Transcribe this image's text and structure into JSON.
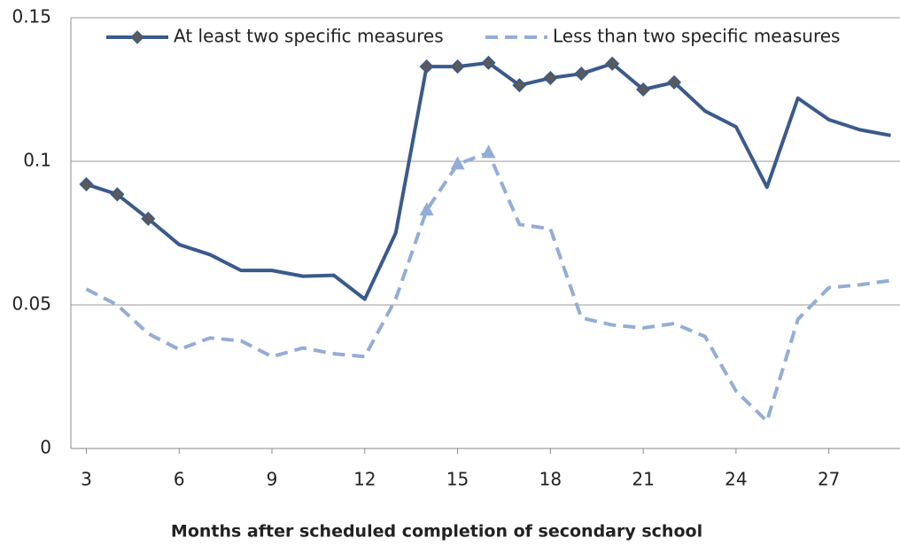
{
  "chart_data": {
    "type": "line",
    "x_label": "Months after scheduled completion of secondary school",
    "x": [
      3,
      4,
      5,
      6,
      7,
      8,
      9,
      10,
      11,
      12,
      13,
      14,
      15,
      16,
      17,
      18,
      19,
      20,
      21,
      22,
      23,
      24,
      25,
      26,
      27,
      28,
      29
    ],
    "series": [
      {
        "name": "At least two specific measures",
        "color": "#3a5a8c",
        "dash": false,
        "marker": "diamond",
        "marker_color": "#5a5a5a",
        "values": [
          0.092,
          0.0885,
          0.08,
          0.071,
          0.0675,
          0.062,
          0.062,
          0.06,
          0.0603,
          0.052,
          0.075,
          0.133,
          0.133,
          0.1343,
          0.1265,
          0.129,
          0.1305,
          0.134,
          0.125,
          0.1275,
          0.1175,
          0.112,
          0.091,
          0.122,
          0.1145,
          0.111,
          0.109
        ],
        "markers": [
          true,
          true,
          true,
          false,
          false,
          false,
          false,
          false,
          false,
          false,
          false,
          true,
          true,
          true,
          true,
          true,
          true,
          true,
          true,
          true,
          false,
          false,
          false,
          false,
          false,
          false,
          false
        ]
      },
      {
        "name": "Less than two specific measures",
        "color": "#93add6",
        "dash": true,
        "marker": "triangle",
        "marker_color": "#93add6",
        "values": [
          0.0555,
          0.05,
          0.04,
          0.0345,
          0.0385,
          0.0375,
          0.032,
          0.035,
          0.033,
          0.032,
          0.052,
          0.083,
          0.099,
          0.103,
          0.078,
          0.0765,
          0.0455,
          0.043,
          0.042,
          0.0435,
          0.039,
          0.02,
          0.0095,
          0.045,
          0.056,
          0.057,
          0.0585
        ],
        "markers": [
          false,
          false,
          false,
          false,
          false,
          false,
          false,
          false,
          false,
          false,
          false,
          true,
          true,
          true,
          false,
          false,
          false,
          false,
          false,
          false,
          false,
          false,
          false,
          false,
          false,
          false,
          false
        ]
      }
    ],
    "xlim": [
      2.5,
      29.3
    ],
    "xticks": [
      3,
      6,
      9,
      12,
      15,
      18,
      21,
      24,
      27
    ],
    "ylim": [
      0,
      0.15
    ],
    "yticks": [
      0,
      0.05,
      0.1,
      0.15
    ],
    "grid": true,
    "legend": "top"
  }
}
